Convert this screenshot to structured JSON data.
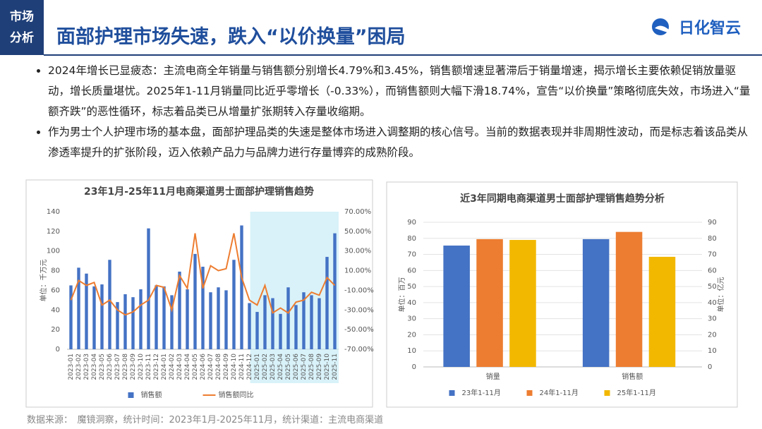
{
  "header": {
    "tag": [
      "市场",
      "分析"
    ],
    "title": "面部护理市场失速，跌入“以价换量”困局",
    "logo": "日化智云"
  },
  "bullets": [
    "2024年增长已显疲态：主流电商全年销量与销售额分别增长4.79%和3.45%，销售额增速显著滞后于销量增速，揭示增长主要依赖促销放量驱动，增长质量堪忧。2025年1-11月销量同比近乎零增长（-0.33%），而销售额则大幅下滑18.74%，宣告“以价换量”策略彻底失效，市场进入“量额齐跌”的恶性循环，标志着品类已从增量扩张期转入存量收缩期。",
    "作为男士个人护理市场的基本盘，面部护理品类的失速是整体市场进入调整期的核心信号。当前的数据表现并非周期性波动，而是标志着该品类从渗透率提升的扩张阶段，迈入依赖产品力与品牌力进行存量博弈的成熟阶段。"
  ],
  "source": "数据来源：　魔镜洞察，统计时间：2023年1月-2025年11月，统计渠道：主流电商渠道",
  "chart_data": [
    {
      "type": "combo",
      "title": "23年1月-25年11月电商渠道男士面部护理销售趋势",
      "ylabel": "单位：千万元",
      "categories": [
        "2023-01",
        "2023-02",
        "2023-03",
        "2023-04",
        "2023-05",
        "2023-06",
        "2023-07",
        "2023-08",
        "2023-09",
        "2023-10",
        "2023-11",
        "2023-12",
        "2024-01",
        "2024-02",
        "2024-03",
        "2024-04",
        "2024-05",
        "2024-06",
        "2024-07",
        "2024-08",
        "2024-09",
        "2024-10",
        "2024-11",
        "2024-12",
        "2025-01",
        "2025-02",
        "2025-03",
        "2025-04",
        "2025-05",
        "2025-06",
        "2025-07",
        "2025-08",
        "2025-09",
        "2025-10",
        "2025-11"
      ],
      "series": [
        {
          "name": "销售额",
          "kind": "bar",
          "color": "#4472c4",
          "values": [
            65,
            83,
            77,
            64,
            66,
            91,
            48,
            56,
            53,
            61,
            123,
            65,
            64,
            55,
            79,
            61,
            97,
            84,
            58,
            63,
            60,
            91,
            126,
            47,
            38,
            55,
            52,
            36,
            63,
            45,
            58,
            55,
            52,
            94,
            118
          ]
        },
        {
          "name": "销售额同比",
          "kind": "line",
          "axis": "y2",
          "color": "#ed7d31",
          "values": [
            -20,
            0,
            -5,
            -2,
            -25,
            -20,
            -30,
            -35,
            -32,
            -25,
            -20,
            -5,
            -7,
            -30,
            5,
            -8,
            48,
            -8,
            15,
            10,
            12,
            48,
            3,
            -20,
            -25,
            -5,
            -33,
            -28,
            -33,
            -22,
            -20,
            -12,
            -15,
            3,
            -5
          ]
        }
      ],
      "ylim": [
        0,
        140
      ],
      "yticks": [
        0,
        20,
        40,
        60,
        80,
        100,
        120,
        140
      ],
      "y2lim": [
        -70,
        70
      ],
      "y2ticks": [
        {
          "value": -70,
          "label": "-70.00%"
        },
        {
          "value": -50,
          "label": "-50.00%"
        },
        {
          "value": -30,
          "label": "-30.00%"
        },
        {
          "value": -10,
          "label": "-10.00%"
        },
        {
          "value": 10,
          "label": "10.00%"
        },
        {
          "value": 30,
          "label": "30.00%"
        },
        {
          "value": 50,
          "label": "50.00%"
        },
        {
          "value": 70,
          "label": "70.00%"
        }
      ],
      "legend": "bottom"
    },
    {
      "type": "bar",
      "title": "近3年同期电商渠道男士面部护理销售趋势分析",
      "ylabel": "单位：百万",
      "y2label": "单位：亿元",
      "categories": [
        "销量",
        "销售额"
      ],
      "series": [
        {
          "name": "23年1-11月",
          "color": "#4472c4",
          "values": [
            75.5,
            79.5
          ]
        },
        {
          "name": "24年1-11月",
          "color": "#ed7d31",
          "values": [
            79.5,
            84
          ]
        },
        {
          "name": "25年1-11月",
          "color": "#f2b800",
          "values": [
            79,
            68.5
          ]
        }
      ],
      "ylim": [
        0,
        90
      ],
      "yticks": [
        0,
        10,
        20,
        30,
        40,
        50,
        60,
        70,
        80,
        90
      ],
      "y2lim": [
        0,
        90
      ],
      "y2ticks": [
        0,
        10,
        20,
        30,
        40,
        50,
        60,
        70,
        80,
        90
      ],
      "grid": true,
      "legend": "bottom"
    }
  ]
}
